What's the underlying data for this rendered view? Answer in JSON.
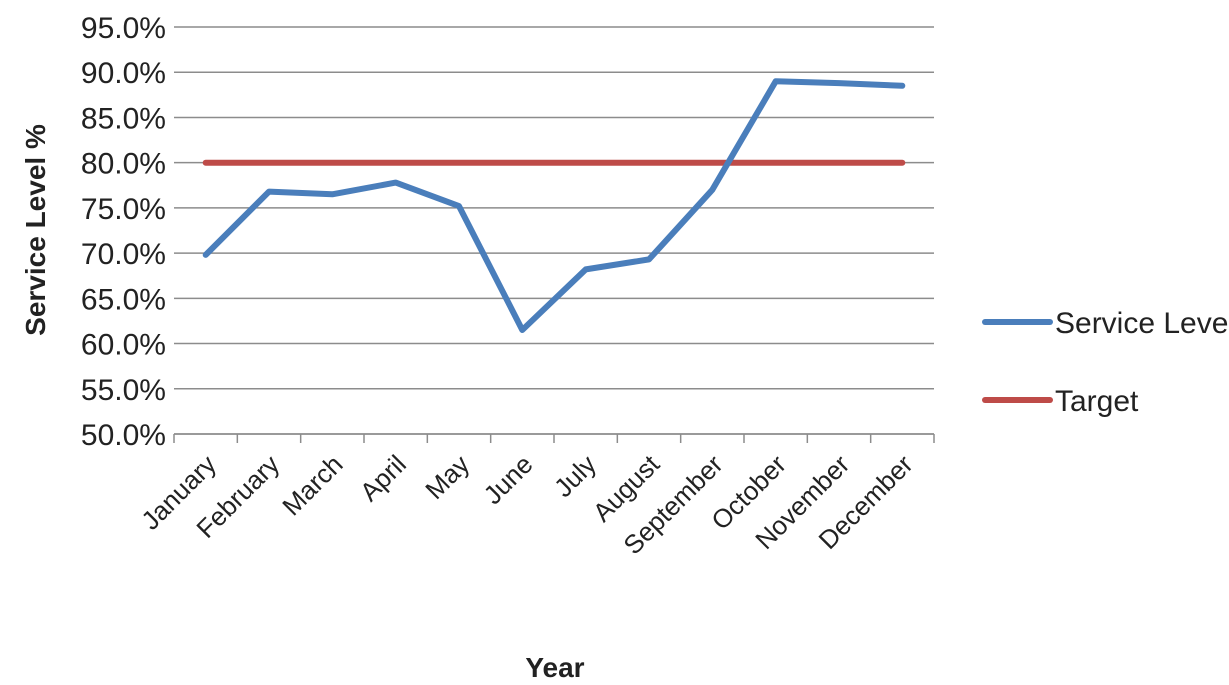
{
  "chart_data": {
    "type": "line",
    "title": "",
    "xlabel": "Year",
    "ylabel": "Service Level %",
    "categories": [
      "January",
      "February",
      "March",
      "April",
      "May",
      "June",
      "July",
      "August",
      "September",
      "October",
      "November",
      "December"
    ],
    "series": [
      {
        "name": "Service Level",
        "color": "#4a7ebb",
        "values": [
          69.8,
          76.8,
          76.5,
          77.8,
          75.2,
          61.5,
          68.2,
          69.3,
          77.0,
          89.0,
          88.8,
          88.5
        ]
      },
      {
        "name": "Target",
        "color": "#be4b48",
        "values": [
          80,
          80,
          80,
          80,
          80,
          80,
          80,
          80,
          80,
          80,
          80,
          80
        ]
      }
    ],
    "ylim": [
      50,
      95
    ],
    "yticks": [
      "50.0%",
      "55.0%",
      "60.0%",
      "65.0%",
      "70.0%",
      "75.0%",
      "80.0%",
      "85.0%",
      "90.0%",
      "95.0%"
    ],
    "grid": true,
    "legend": "right"
  }
}
